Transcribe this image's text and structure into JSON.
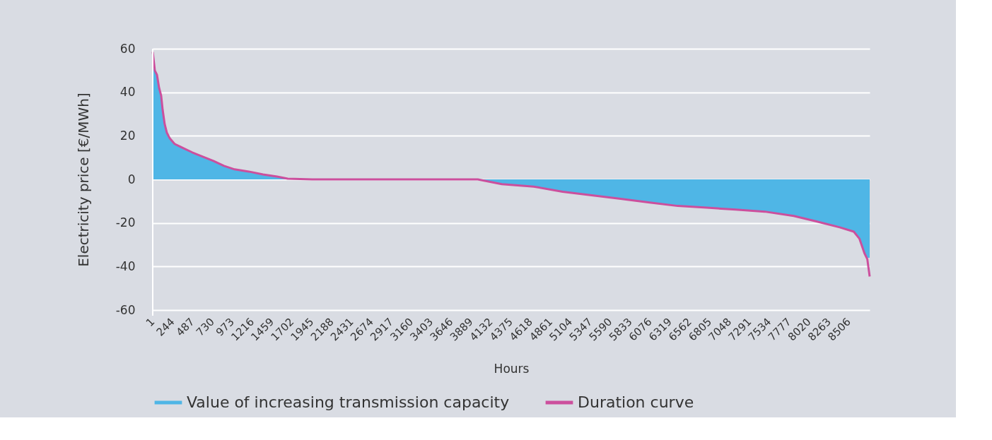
{
  "chart_data": {
    "type": "area",
    "xlabel": "Hours",
    "ylabel": "Electricity price [€/MWh]",
    "x": [
      1,
      27,
      53,
      79,
      104,
      122,
      147,
      173,
      207,
      268,
      354,
      484,
      613,
      743,
      872,
      1002,
      1175,
      1348,
      1520,
      1650,
      1952,
      3000,
      3972,
      4266,
      4655,
      5009,
      5363,
      5717,
      6071,
      6416,
      6770,
      7124,
      7478,
      7832,
      8109,
      8394,
      8566,
      8636,
      8696,
      8731,
      8760
    ],
    "series": [
      {
        "name": "Value of increasing transmission capacity",
        "type": "area",
        "color": "#4fb6e6",
        "values": [
          52,
          50,
          48,
          42,
          38.5,
          32,
          25.4,
          21.5,
          19,
          16.3,
          14.7,
          12.4,
          10.4,
          8.5,
          6.2,
          4.6,
          3.6,
          2.3,
          1.3,
          0.3,
          0,
          0,
          0,
          -2.2,
          -3.3,
          -5.7,
          -7.3,
          -8.9,
          -10.6,
          -12.2,
          -13,
          -13.9,
          -14.8,
          -16.8,
          -19.3,
          -22,
          -24,
          -27.3,
          -33.9,
          -36,
          -36
        ]
      },
      {
        "name": "Duration curve",
        "type": "line",
        "color": "#cc4f9d",
        "values": [
          58.6,
          50,
          48,
          42,
          38.5,
          32,
          25.4,
          21.5,
          19,
          16.3,
          14.7,
          12.4,
          10.4,
          8.5,
          6.2,
          4.6,
          3.6,
          2.3,
          1.3,
          0.3,
          0,
          0,
          0,
          -2.2,
          -3.3,
          -5.7,
          -7.3,
          -8.9,
          -10.6,
          -12.2,
          -13,
          -13.9,
          -14.8,
          -16.8,
          -19.3,
          -22,
          -24,
          -27.3,
          -33.9,
          -36.6,
          -44.6
        ]
      }
    ],
    "xlim": [
      1,
      8760
    ],
    "xticks": [
      1,
      244,
      487,
      730,
      973,
      1216,
      1459,
      1702,
      1945,
      2188,
      2431,
      2674,
      2917,
      3160,
      3403,
      3646,
      3889,
      4132,
      4375,
      4618,
      4861,
      5104,
      5347,
      5590,
      5833,
      6076,
      6319,
      6562,
      6805,
      7048,
      7291,
      7534,
      7777,
      8020,
      8263,
      8506
    ],
    "ylim": [
      -60,
      60
    ],
    "yticks": [
      -60,
      -40,
      -20,
      0,
      20,
      40,
      60
    ],
    "grid": "y",
    "legend": "bottom"
  }
}
